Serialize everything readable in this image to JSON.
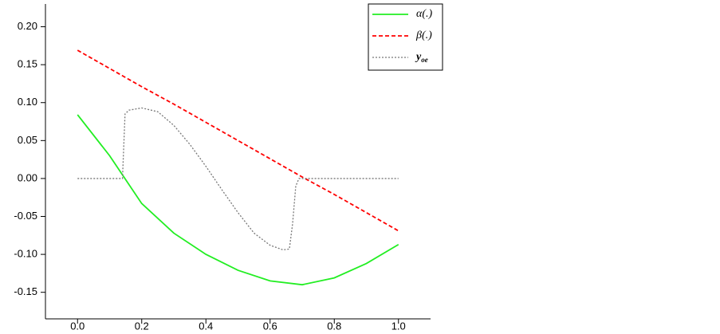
{
  "chart_data": {
    "type": "line",
    "xlim": [
      -0.1,
      1.1
    ],
    "ylim": [
      -0.185,
      0.23
    ],
    "xticks": [
      {
        "value": 0,
        "label": "0.0"
      },
      {
        "value": 0.2,
        "label": "0.2"
      },
      {
        "value": 0.4,
        "label": "0.4"
      },
      {
        "value": 0.6,
        "label": "0.6"
      },
      {
        "value": 0.8,
        "label": "0.8"
      },
      {
        "value": 1,
        "label": "1.0"
      }
    ],
    "yticks": [
      {
        "value": -0.15,
        "label": "-0.15"
      },
      {
        "value": -0.1,
        "label": "-0.10"
      },
      {
        "value": -0.05,
        "label": "-0.05"
      },
      {
        "value": 0,
        "label": "0.00"
      },
      {
        "value": 0.05,
        "label": "0.05"
      },
      {
        "value": 0.1,
        "label": "0.10"
      },
      {
        "value": 0.15,
        "label": "0.15"
      },
      {
        "value": 0.2,
        "label": "0.20"
      }
    ],
    "legend": "upper right",
    "series": [
      {
        "name": "α(.)",
        "color": "#22ee22",
        "style": "solid",
        "x": [
          0,
          0.1,
          0.2,
          0.3,
          0.4,
          0.5,
          0.6,
          0.7,
          0.8,
          0.9,
          1.0
        ],
        "values": [
          0.084,
          0.03,
          -0.033,
          -0.072,
          -0.1,
          -0.121,
          -0.135,
          -0.14,
          -0.131,
          -0.112,
          -0.087
        ]
      },
      {
        "name": "β(.)",
        "color": "#ff0000",
        "style": "dashed",
        "x": [
          0,
          0.1,
          0.2,
          0.3,
          0.4,
          0.5,
          0.6,
          0.7,
          0.8,
          0.9,
          1.0
        ],
        "values": [
          0.169,
          0.145,
          0.121,
          0.098,
          0.074,
          0.05,
          0.026,
          0.002,
          -0.021,
          -0.045,
          -0.069
        ]
      },
      {
        "name": "y",
        "subscript": "oe",
        "color": "#777777",
        "style": "dotted",
        "x": [
          0,
          0.14,
          0.148,
          0.16,
          0.2,
          0.25,
          0.3,
          0.35,
          0.4,
          0.45,
          0.5,
          0.55,
          0.6,
          0.64,
          0.66,
          0.67,
          0.68,
          0.69,
          1.0
        ],
        "values": [
          0,
          0,
          0.085,
          0.09,
          0.093,
          0.088,
          0.07,
          0.045,
          0.016,
          -0.015,
          -0.045,
          -0.072,
          -0.088,
          -0.094,
          -0.093,
          -0.06,
          -0.01,
          0,
          0
        ]
      }
    ]
  }
}
